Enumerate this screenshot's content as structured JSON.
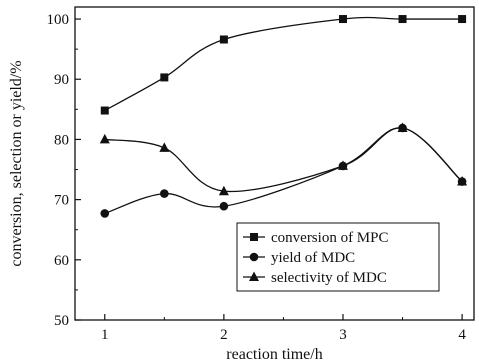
{
  "chart_data": {
    "type": "scatter",
    "title": "",
    "xlabel": "reaction time/h",
    "ylabel": "conversion, selection or yield/%",
    "xlim": [
      0.75,
      4.1
    ],
    "ylim": [
      50,
      102
    ],
    "x_ticks": [
      1,
      2,
      3,
      4
    ],
    "y_ticks": [
      50,
      60,
      70,
      80,
      90,
      100
    ],
    "x_tick_labels": [
      "1",
      "2",
      "3",
      "4"
    ],
    "y_tick_labels": [
      "50",
      "60",
      "70",
      "80",
      "90",
      "100"
    ],
    "grid": false,
    "legend_position": "lower-right",
    "series": [
      {
        "name": "conversion of MPC",
        "marker": "square",
        "x": [
          1,
          1.5,
          2,
          3,
          3.5,
          4
        ],
        "values": [
          84.8,
          90.3,
          96.6,
          100,
          100,
          100
        ]
      },
      {
        "name": "yield of MDC",
        "marker": "circle",
        "x": [
          1,
          1.5,
          2,
          3,
          3.5,
          4
        ],
        "values": [
          67.7,
          71.0,
          68.9,
          75.6,
          81.9,
          73.0
        ]
      },
      {
        "name": "selectivity of MDC",
        "marker": "triangle",
        "x": [
          1,
          1.5,
          2,
          3,
          3.5,
          4
        ],
        "values": [
          80.0,
          78.6,
          71.4,
          75.6,
          81.9,
          73.0
        ]
      }
    ],
    "colors": {
      "ink": "#111111"
    }
  }
}
